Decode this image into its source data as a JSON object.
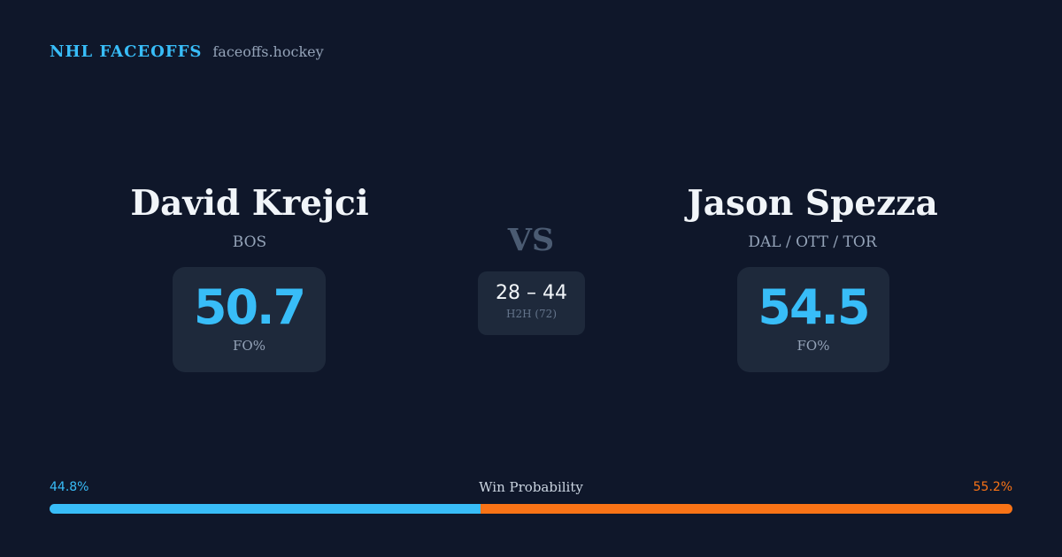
{
  "brand": {
    "name": "NHL FACEOFFS",
    "site": "faceoffs.hockey"
  },
  "colors": {
    "accent_blue": "#38bdf8",
    "accent_orange": "#f97316",
    "brand_site": "#94a3b8"
  },
  "left_player": {
    "name": "David Krejci",
    "team": "BOS",
    "fo_pct": "50.7",
    "fo_label": "FO%"
  },
  "right_player": {
    "name": "Jason Spezza",
    "team": "DAL / OTT / TOR",
    "fo_pct": "54.5",
    "fo_label": "FO%"
  },
  "versus": {
    "label": "VS",
    "h2h_score": "28 – 44",
    "h2h_label": "H2H (72)"
  },
  "win_probability": {
    "title": "Win Probability",
    "left_label": "44.8%",
    "right_label": "55.2%",
    "left_value": 44.8,
    "right_value": 55.2
  }
}
